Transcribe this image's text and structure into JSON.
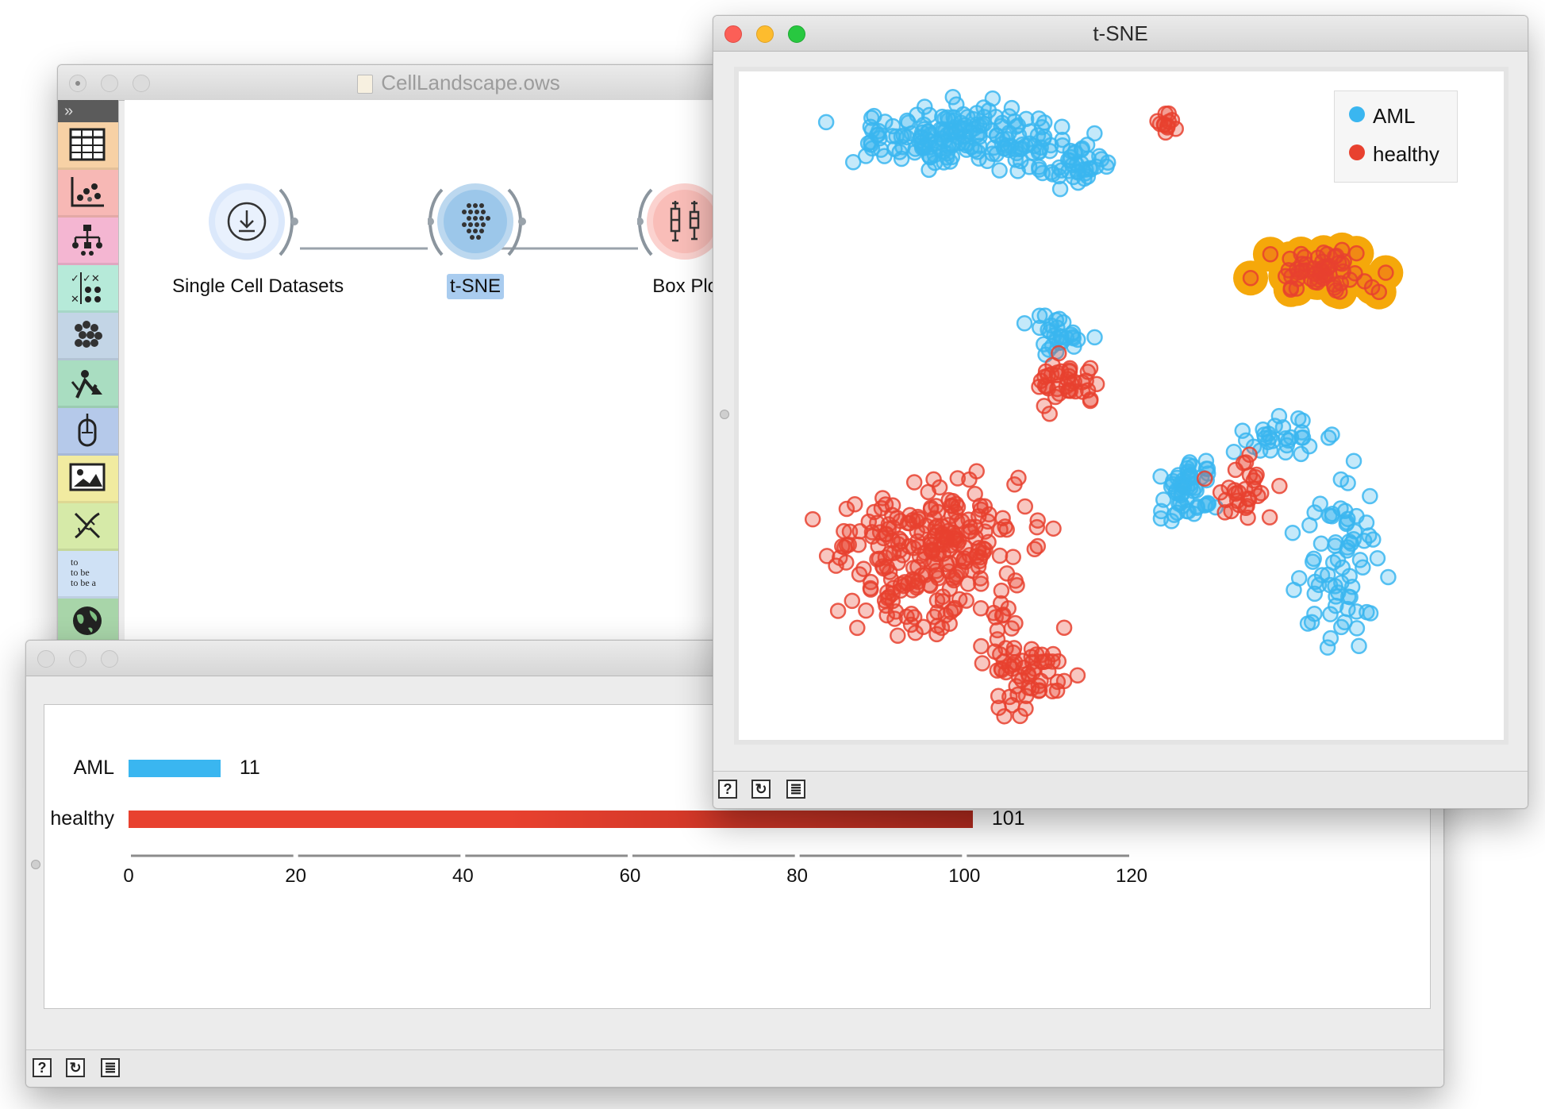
{
  "canvas_window": {
    "title": "CellLandscape.ows",
    "toolbox_toggle": "»",
    "categories": [
      "data",
      "visualize",
      "model",
      "evaluate",
      "unsupervised",
      "educational",
      "time-series",
      "image-analytics",
      "bioinformatics",
      "text-mining",
      "geo"
    ],
    "text_mining_icon_lines": [
      "to",
      "to be",
      "to be a"
    ],
    "nodes": [
      {
        "label": "Single Cell Datasets",
        "icon": "download-icon"
      },
      {
        "label": "t-SNE",
        "icon": "tsne-icon",
        "selected": true
      },
      {
        "label": "Box Plot",
        "icon": "boxplot-icon"
      }
    ]
  },
  "box_window": {
    "title": "Bo",
    "chart_data": {
      "type": "bar",
      "orientation": "horizontal",
      "categories": [
        "AML",
        "healthy"
      ],
      "values": [
        11,
        101
      ],
      "value_labels": [
        "11",
        "101"
      ],
      "colors": [
        "#3ab6f0",
        "#e8412f"
      ],
      "xlim": [
        0,
        120
      ],
      "ticks": [
        0,
        20,
        40,
        60,
        80,
        100,
        120
      ],
      "tick_labels": [
        "0",
        "20",
        "40",
        "60",
        "80",
        "100",
        "120"
      ]
    }
  },
  "tsne_window": {
    "title": "t-SNE",
    "chart_data": {
      "type": "scatter",
      "legend": {
        "position": "top-right",
        "entries": [
          {
            "label": "AML",
            "color": "#3ab6f0"
          },
          {
            "label": "healthy",
            "color": "#e8412f"
          }
        ]
      },
      "selection_color": "#f5a80a",
      "clusters": [
        {
          "class": "AML",
          "cx": 0.27,
          "cy": 0.08,
          "rx": 0.16,
          "ry": 0.045,
          "n": 180
        },
        {
          "class": "AML",
          "cx": 0.43,
          "cy": 0.12,
          "rx": 0.06,
          "ry": 0.04,
          "n": 40
        },
        {
          "class": "healthy",
          "cx": 0.565,
          "cy": 0.055,
          "rx": 0.02,
          "ry": 0.02,
          "n": 12
        },
        {
          "class": "healthy",
          "cx": 0.82,
          "cy": 0.29,
          "rx": 0.09,
          "ry": 0.04,
          "n": 60,
          "selected": true
        },
        {
          "class": "AML",
          "cx": 0.41,
          "cy": 0.39,
          "rx": 0.045,
          "ry": 0.03,
          "n": 30
        },
        {
          "class": "healthy",
          "cx": 0.42,
          "cy": 0.46,
          "rx": 0.05,
          "ry": 0.035,
          "n": 40
        },
        {
          "class": "AML",
          "cx": 0.6,
          "cy": 0.63,
          "rx": 0.04,
          "ry": 0.05,
          "n": 60
        },
        {
          "class": "AML",
          "cx": 0.83,
          "cy": 0.75,
          "rx": 0.06,
          "ry": 0.14,
          "n": 70
        },
        {
          "class": "healthy",
          "cx": 0.22,
          "cy": 0.74,
          "rx": 0.14,
          "ry": 0.12,
          "n": 260
        },
        {
          "class": "healthy",
          "cx": 0.35,
          "cy": 0.92,
          "rx": 0.07,
          "ry": 0.06,
          "n": 60
        },
        {
          "class": "AML",
          "cx": 0.74,
          "cy": 0.55,
          "rx": 0.07,
          "ry": 0.03,
          "n": 30
        },
        {
          "class": "healthy",
          "cx": 0.68,
          "cy": 0.63,
          "rx": 0.05,
          "ry": 0.05,
          "n": 30
        }
      ]
    }
  }
}
